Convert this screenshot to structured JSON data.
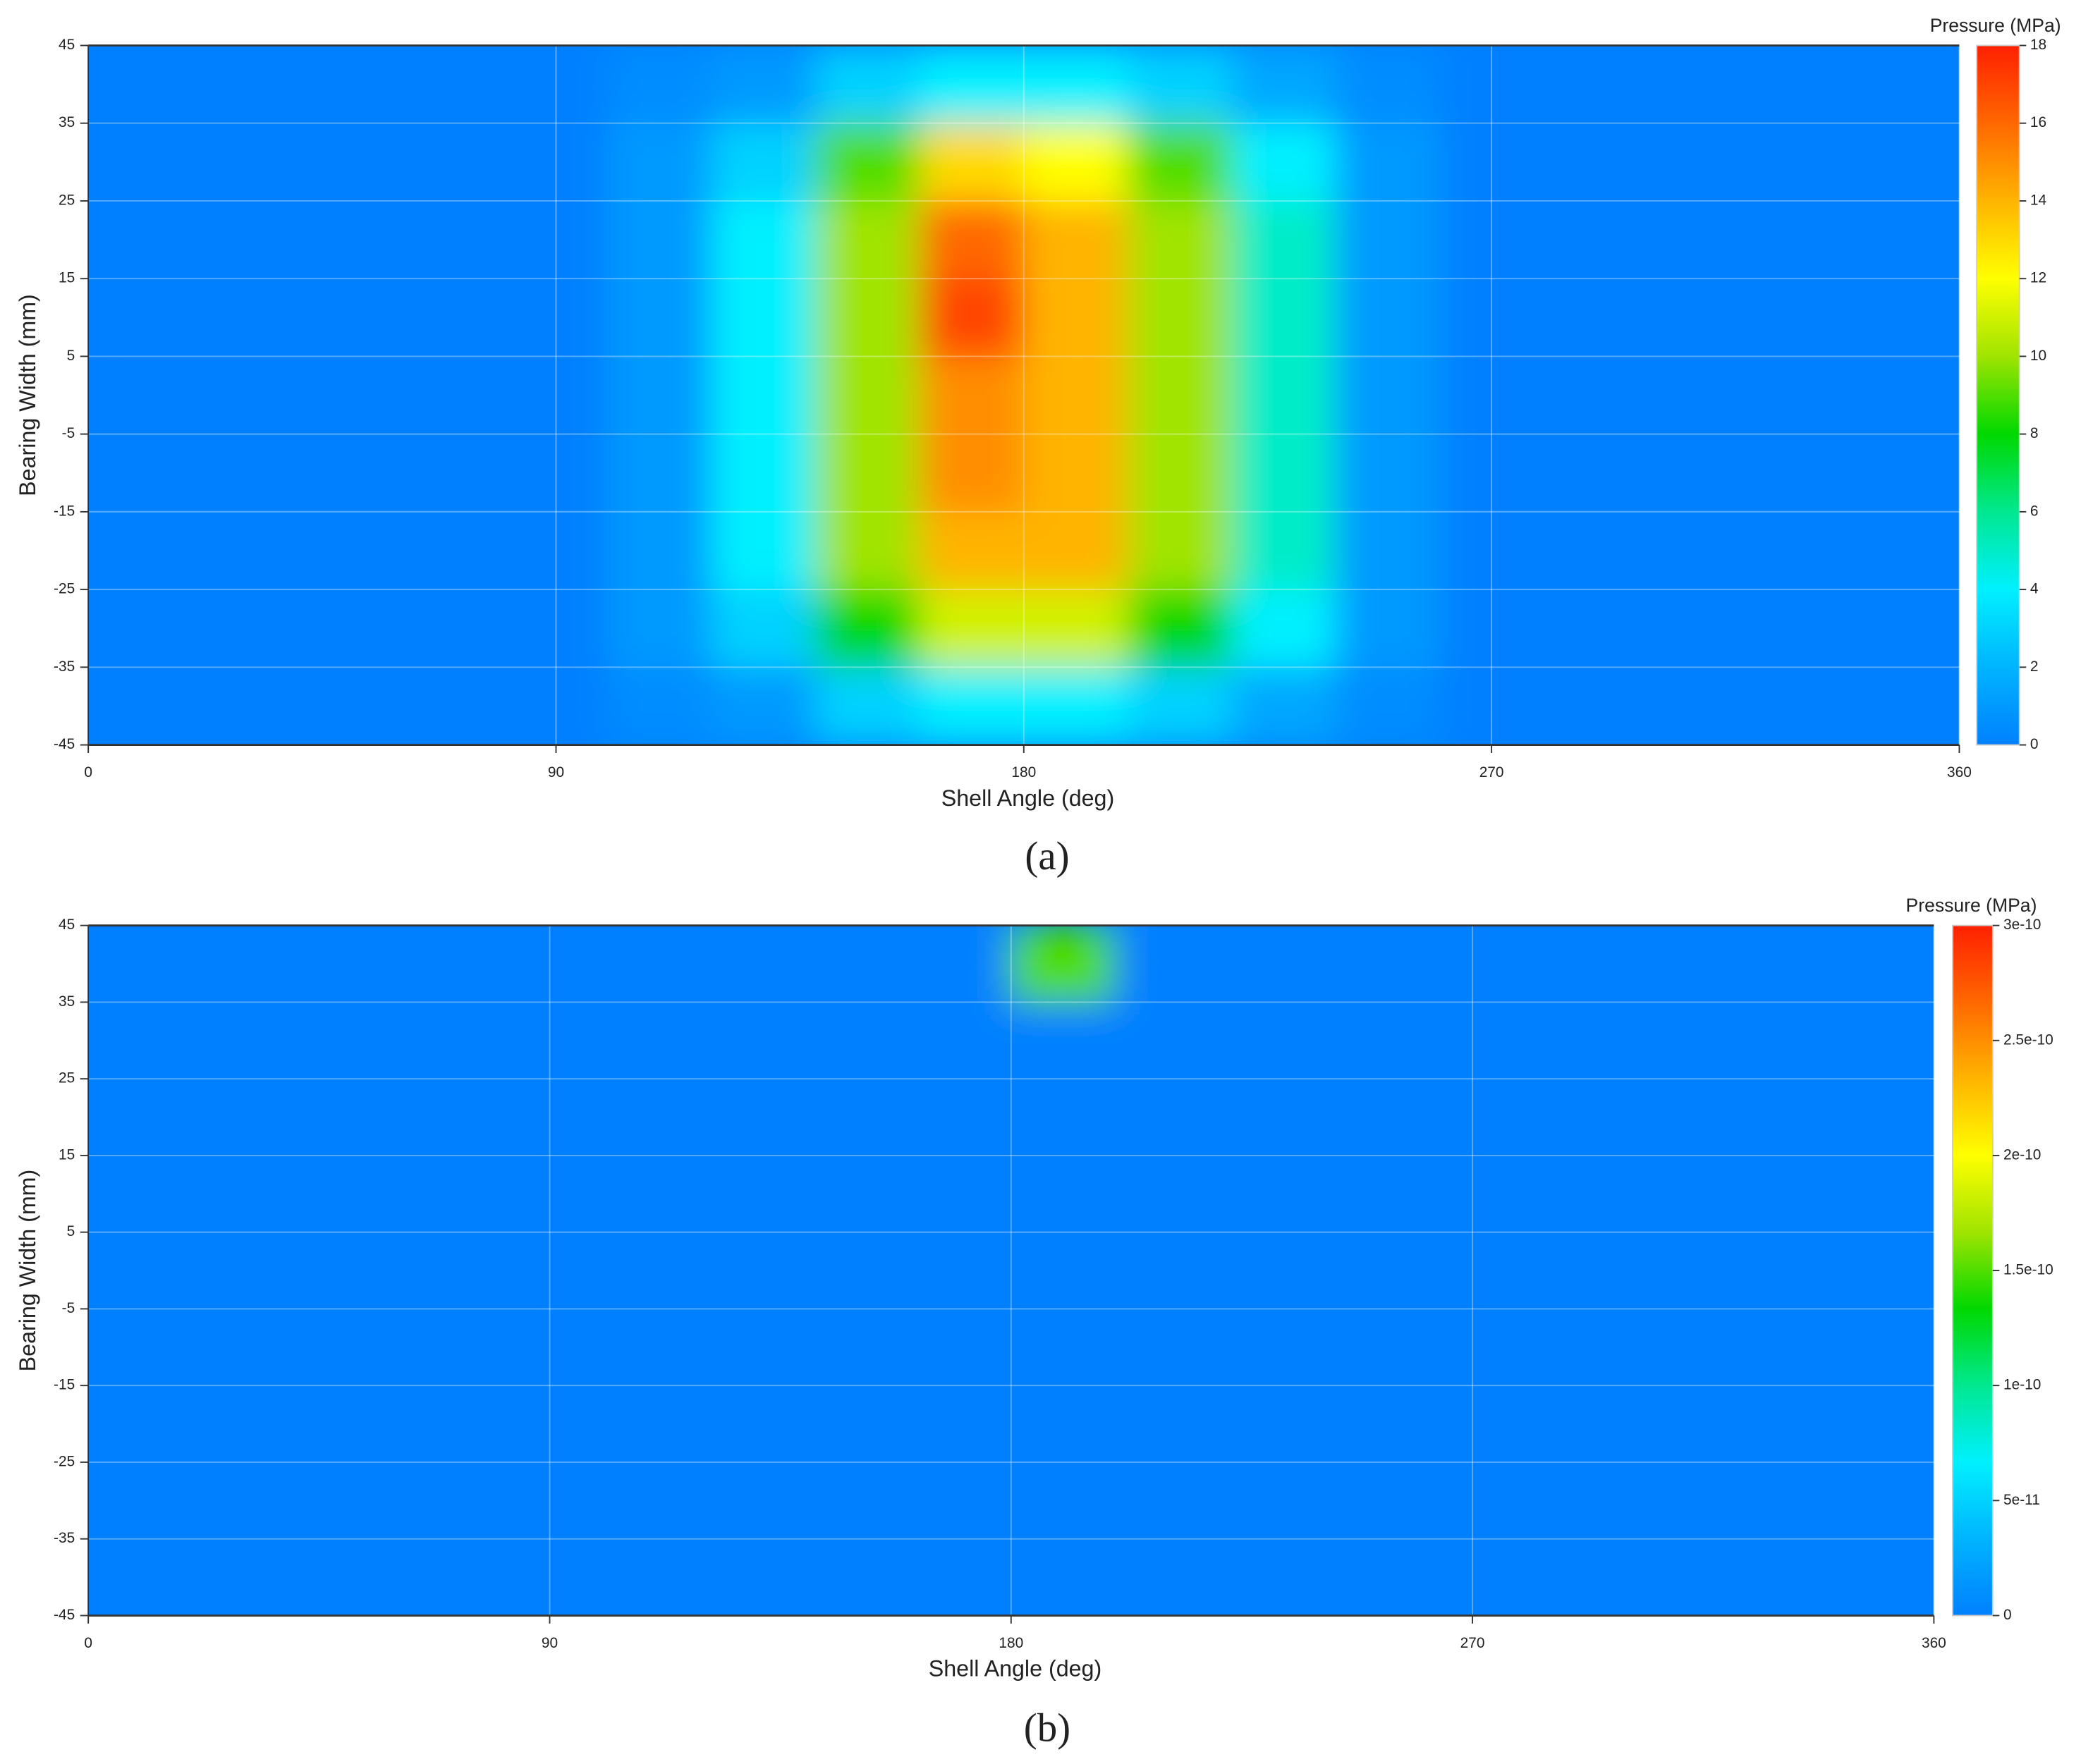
{
  "chart_data": [
    {
      "type": "heatmap",
      "colorbar_title": "Pressure (MPa)",
      "xlabel": "Shell Angle (deg)",
      "ylabel": "Bearing Width (mm)",
      "panel_label": "(a)",
      "x": [
        10,
        30,
        50,
        70,
        90,
        110,
        130,
        150,
        170,
        190,
        210,
        230,
        250,
        270,
        290,
        310,
        330,
        350
      ],
      "y": [
        40,
        30,
        20,
        10,
        0,
        -10,
        -20,
        -30,
        -40
      ],
      "values": [
        [
          0,
          0,
          0,
          0,
          0,
          0.5,
          1,
          3,
          4,
          4,
          3,
          1.5,
          0.5,
          0,
          0,
          0,
          0,
          0
        ],
        [
          0,
          0,
          0,
          0,
          0,
          1,
          3,
          9,
          13,
          12,
          9,
          4,
          1,
          0,
          0,
          0,
          0,
          0
        ],
        [
          0,
          0,
          0,
          0,
          0,
          1,
          4,
          10,
          16,
          14,
          10,
          5,
          1,
          0,
          0,
          0,
          0,
          0
        ],
        [
          0,
          0,
          0,
          0,
          0,
          1,
          4,
          10,
          17,
          14,
          10,
          5,
          1,
          0,
          0,
          0,
          0,
          0
        ],
        [
          0,
          0,
          0,
          0,
          0,
          1,
          4,
          10,
          15,
          14,
          10,
          5,
          1,
          0,
          0,
          0,
          0,
          0
        ],
        [
          0,
          0,
          0,
          0,
          0,
          1,
          4,
          10,
          15,
          14,
          10,
          5,
          1,
          0,
          0,
          0,
          0,
          0
        ],
        [
          0,
          0,
          0,
          0,
          0,
          1,
          4,
          10,
          14,
          14,
          10,
          5,
          1,
          0,
          0,
          0,
          0,
          0
        ],
        [
          0,
          0,
          0,
          0,
          0,
          1,
          3,
          8,
          11,
          11,
          8,
          4,
          1,
          0,
          0,
          0,
          0,
          0
        ],
        [
          0,
          0,
          0,
          0,
          0,
          0.5,
          1,
          3,
          4,
          4,
          3,
          1.5,
          0.5,
          0,
          0,
          0,
          0,
          0
        ]
      ],
      "xlim": [
        0,
        360
      ],
      "xticks": [
        0,
        90,
        180,
        270,
        360
      ],
      "ylim": [
        -45,
        45
      ],
      "yticks": [
        45,
        35,
        25,
        15,
        5,
        -5,
        -15,
        -25,
        -35,
        -45
      ],
      "zlim": [
        0,
        18
      ],
      "zticks": [
        0,
        2,
        4,
        6,
        8,
        10,
        12,
        14,
        16,
        18
      ],
      "colors": [
        "#0080ff",
        "#00b4ff",
        "#00f0ff",
        "#00e890",
        "#00d800",
        "#a0e400",
        "#ffff00",
        "#ffb400",
        "#ff6800",
        "#ff2000"
      ],
      "grid": true
    },
    {
      "type": "heatmap",
      "colorbar_title": "Pressure (MPa)",
      "xlabel": "Shell Angle (deg)",
      "ylabel": "Bearing Width (mm)",
      "panel_label": "(b)",
      "x": [
        10,
        30,
        50,
        70,
        90,
        110,
        130,
        150,
        170,
        190,
        210,
        230,
        250,
        270,
        290,
        310,
        330,
        350
      ],
      "y": [
        40,
        30,
        20,
        10,
        0,
        -10,
        -20,
        -30,
        -40
      ],
      "values": [
        [
          0,
          0,
          0,
          0,
          0,
          0,
          0,
          0,
          0,
          1.5e-10,
          0,
          0,
          0,
          0,
          0,
          0,
          0,
          0
        ],
        [
          0,
          0,
          0,
          0,
          0,
          0,
          0,
          0,
          0,
          0,
          0,
          0,
          0,
          0,
          0,
          0,
          0,
          0
        ],
        [
          0,
          0,
          0,
          0,
          0,
          0,
          0,
          0,
          0,
          0,
          0,
          0,
          0,
          0,
          0,
          0,
          0,
          0
        ],
        [
          0,
          0,
          0,
          0,
          0,
          0,
          0,
          0,
          0,
          0,
          0,
          0,
          0,
          0,
          0,
          0,
          0,
          0
        ],
        [
          0,
          0,
          0,
          0,
          0,
          0,
          0,
          0,
          0,
          0,
          0,
          0,
          0,
          0,
          0,
          0,
          0,
          0
        ],
        [
          0,
          0,
          0,
          0,
          0,
          0,
          0,
          0,
          0,
          0,
          0,
          0,
          0,
          0,
          0,
          0,
          0,
          0
        ],
        [
          0,
          0,
          0,
          0,
          0,
          0,
          0,
          0,
          0,
          0,
          0,
          0,
          0,
          0,
          0,
          0,
          0,
          0
        ],
        [
          0,
          0,
          0,
          0,
          0,
          0,
          0,
          0,
          0,
          0,
          0,
          0,
          0,
          0,
          0,
          0,
          0,
          0
        ],
        [
          0,
          0,
          0,
          0,
          0,
          0,
          0,
          0,
          0,
          0,
          0,
          0,
          0,
          0,
          0,
          0,
          0,
          0
        ]
      ],
      "xlim": [
        0,
        360
      ],
      "xticks": [
        0,
        90,
        180,
        270,
        360
      ],
      "ylim": [
        -45,
        45
      ],
      "yticks": [
        45,
        35,
        25,
        15,
        5,
        -5,
        -15,
        -25,
        -35,
        -45
      ],
      "zlim": [
        0,
        3e-10
      ],
      "zticks": [
        0,
        {
          "value": 5e-11,
          "label": "5e-11"
        },
        {
          "value": 1e-10,
          "label": "1e-10"
        },
        {
          "value": 1.5e-10,
          "label": "1.5e-10"
        },
        {
          "value": 2e-10,
          "label": "2e-10"
        },
        {
          "value": 2.5e-10,
          "label": "2.5e-10"
        },
        {
          "value": 3e-10,
          "label": "3e-10"
        }
      ],
      "colors": [
        "#0080ff",
        "#00b4ff",
        "#00f0ff",
        "#00e890",
        "#00d800",
        "#a0e400",
        "#ffff00",
        "#ffb400",
        "#ff6800",
        "#ff2000"
      ],
      "grid": true
    }
  ]
}
